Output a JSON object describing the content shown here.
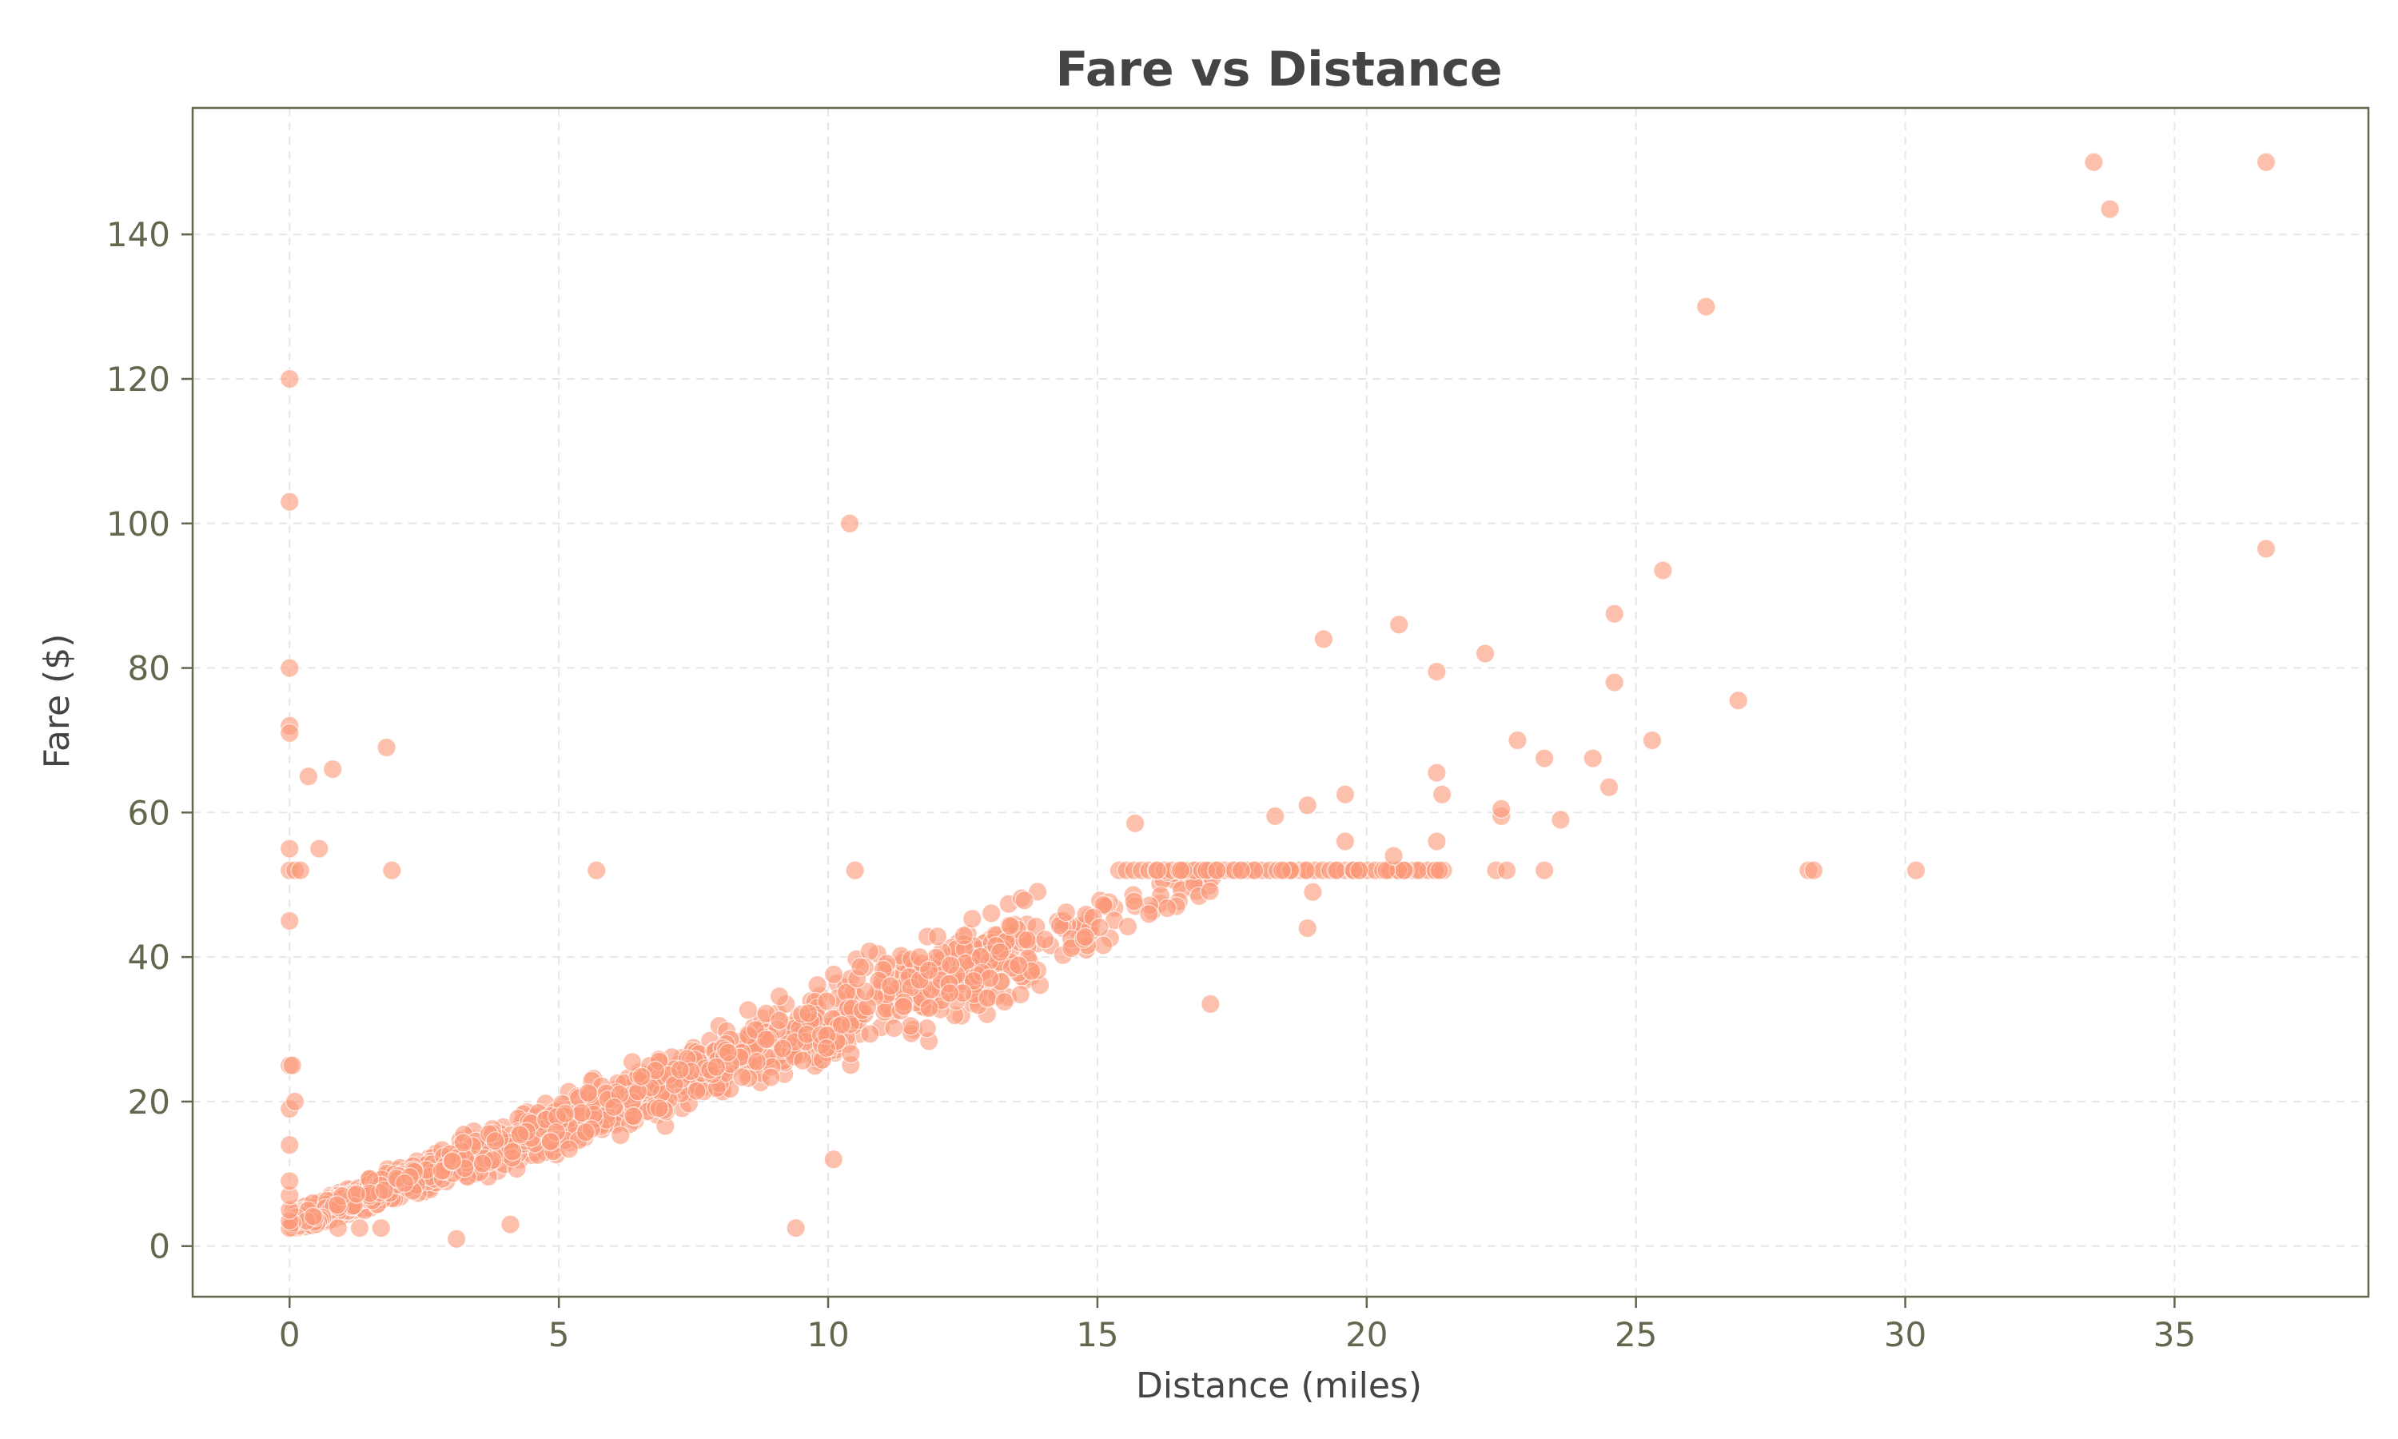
{
  "chart_data": {
    "type": "scatter",
    "title": "Fare vs Distance",
    "xlabel": "Distance (miles)",
    "ylabel": "Fare ($)",
    "xlim": [
      -1.8,
      38.6
    ],
    "ylim": [
      -7,
      157.5
    ],
    "xticks": [
      0,
      5,
      10,
      15,
      20,
      25,
      30,
      35
    ],
    "yticks": [
      0,
      20,
      40,
      60,
      80,
      100,
      120,
      140
    ],
    "grid": true,
    "color": "#fa9a79",
    "points": [
      [
        0.0,
        120
      ],
      [
        0.0,
        103
      ],
      [
        0.0,
        80
      ],
      [
        0.0,
        72
      ],
      [
        0.0,
        71
      ],
      [
        0.0,
        55
      ],
      [
        0.0,
        52
      ],
      [
        0.1,
        52
      ],
      [
        0.0,
        45
      ],
      [
        0.0,
        25
      ],
      [
        0.05,
        25
      ],
      [
        0.0,
        19
      ],
      [
        0.1,
        20
      ],
      [
        0.0,
        14
      ],
      [
        0.0,
        2.5
      ],
      [
        0.0,
        3.5
      ],
      [
        0.0,
        5
      ],
      [
        0.0,
        7
      ],
      [
        0.0,
        9
      ],
      [
        0.35,
        65
      ],
      [
        0.55,
        55
      ],
      [
        0.8,
        66
      ],
      [
        1.8,
        69
      ],
      [
        1.9,
        52
      ],
      [
        0.2,
        52
      ],
      [
        3.1,
        1
      ],
      [
        4.1,
        3
      ],
      [
        1.7,
        2.5
      ],
      [
        1.3,
        2.5
      ],
      [
        0.9,
        2.5
      ],
      [
        5.7,
        52
      ],
      [
        10.4,
        100
      ],
      [
        10.1,
        12
      ],
      [
        9.4,
        2.5
      ],
      [
        10.5,
        52
      ],
      [
        17.1,
        33.5
      ],
      [
        15.7,
        58.5
      ],
      [
        19.2,
        84
      ],
      [
        20.6,
        86
      ],
      [
        21.3,
        79.5
      ],
      [
        22.2,
        82
      ],
      [
        19.6,
        62.5
      ],
      [
        21.3,
        65.5
      ],
      [
        21.4,
        62.5
      ],
      [
        18.9,
        61
      ],
      [
        18.3,
        59.5
      ],
      [
        22.5,
        59.5
      ],
      [
        22.5,
        60.5
      ],
      [
        18.9,
        44
      ],
      [
        19.0,
        49
      ],
      [
        21.3,
        56
      ],
      [
        20.5,
        54
      ],
      [
        19.6,
        56
      ],
      [
        22.8,
        70
      ],
      [
        23.3,
        67.5
      ],
      [
        24.2,
        67.5
      ],
      [
        23.6,
        59
      ],
      [
        24.5,
        63.5
      ],
      [
        24.6,
        78
      ],
      [
        24.6,
        87.5
      ],
      [
        25.3,
        70
      ],
      [
        25.5,
        93.5
      ],
      [
        26.9,
        75.5
      ],
      [
        26.3,
        130
      ],
      [
        22.4,
        52
      ],
      [
        22.6,
        52
      ],
      [
        23.3,
        52
      ],
      [
        28.2,
        52
      ],
      [
        28.3,
        52
      ],
      [
        30.2,
        52
      ],
      [
        33.5,
        150
      ],
      [
        36.7,
        150
      ],
      [
        33.8,
        143.5
      ],
      [
        36.7,
        96.5
      ]
    ]
  }
}
